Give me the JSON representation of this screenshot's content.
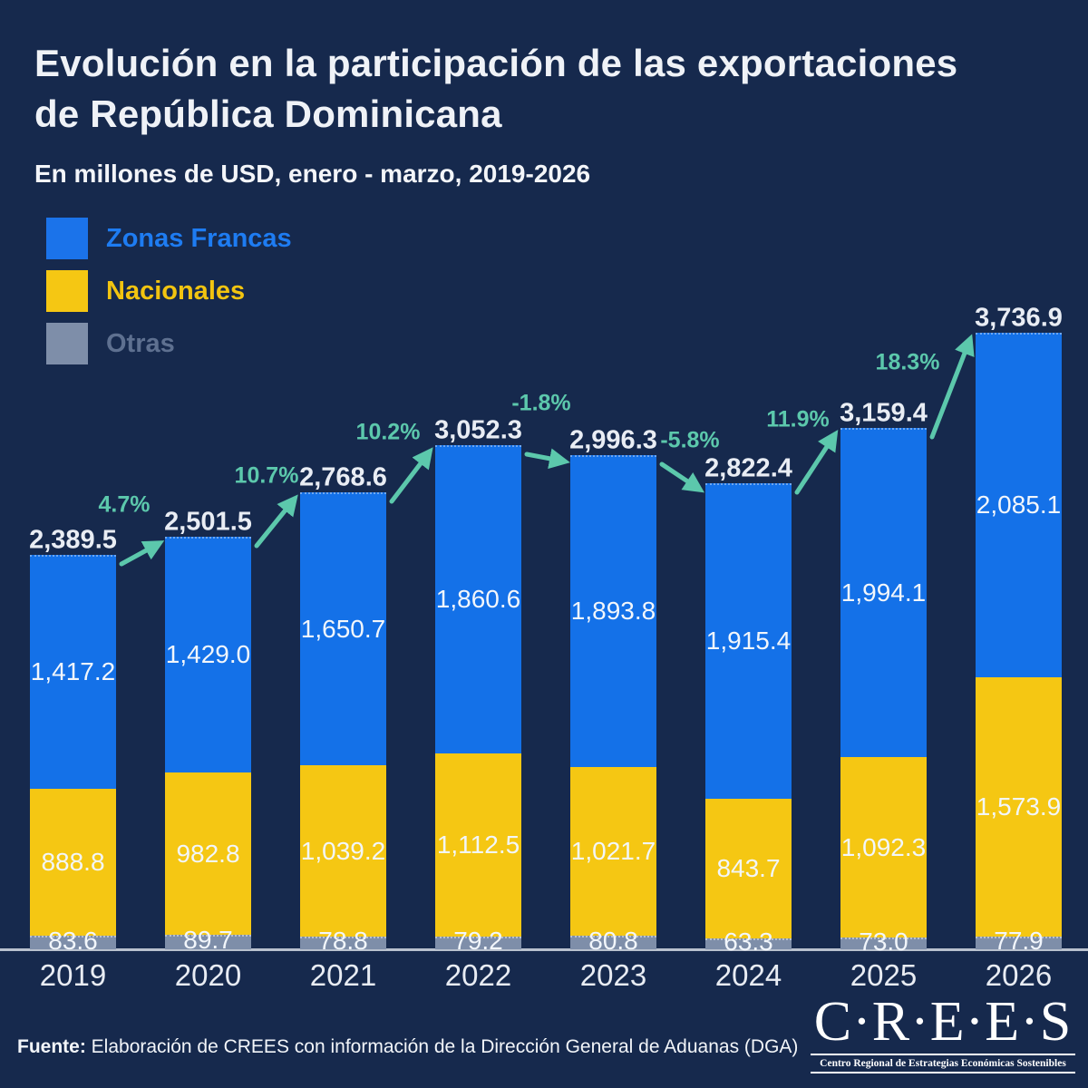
{
  "header": {
    "title_lines": [
      "Evolución en la participación de las exportaciones",
      "de República Dominicana"
    ],
    "subtitle": "En millones de USD, enero - marzo, 2019-2026"
  },
  "legend": {
    "items": [
      {
        "label": "Zonas Francas",
        "swatch_color": "#1B73EA",
        "label_color": "#1E7CF2"
      },
      {
        "label": "Nacionales",
        "swatch_color": "#F5C713",
        "label_color": "#F2C410"
      },
      {
        "label": "Otras",
        "swatch_color": "#7E8EA9",
        "label_color": "#5E7090"
      }
    ]
  },
  "chart_data": {
    "type": "bar",
    "stacked": true,
    "unit": "millones de USD",
    "categories": [
      "2019",
      "2020",
      "2021",
      "2022",
      "2023",
      "2024",
      "2025",
      "2026"
    ],
    "series": [
      {
        "name": "Zonas Francas",
        "color": "#1471E8",
        "values": [
          1417.2,
          1429.0,
          1650.7,
          1860.6,
          1893.8,
          1915.4,
          1994.1,
          2085.1
        ]
      },
      {
        "name": "Nacionales",
        "color": "#F5C713",
        "values": [
          888.8,
          982.8,
          1039.2,
          1112.5,
          1021.7,
          843.7,
          1092.3,
          1573.9
        ]
      },
      {
        "name": "Otras",
        "color": "#7E8EA9",
        "values": [
          83.6,
          89.7,
          78.8,
          79.2,
          80.8,
          63.3,
          73.0,
          77.9
        ]
      }
    ],
    "totals": [
      2389.5,
      2501.5,
      2768.6,
      3052.3,
      2996.3,
      2822.4,
      3159.4,
      3736.9
    ],
    "growth_labels": [
      "4.7%",
      "10.7%",
      "10.2%",
      "-1.8%",
      "-5.8%",
      "11.9%",
      "18.3%"
    ],
    "growth_color": "#5CC8AC",
    "baseline_color": "#B9C1CE",
    "legend_position": "top-left",
    "grid": false
  },
  "footer": {
    "source_prefix": "Fuente:",
    "source_text": " Elaboración de CREES con información de la Dirección General de Aduanas (DGA)"
  },
  "logo": {
    "name": "C·R·E·E·S",
    "tagline": "Centro Regional de Estrategias Económicas Sostenibles"
  },
  "colors": {
    "background": "#16294D",
    "text": "#EFF2F7"
  }
}
